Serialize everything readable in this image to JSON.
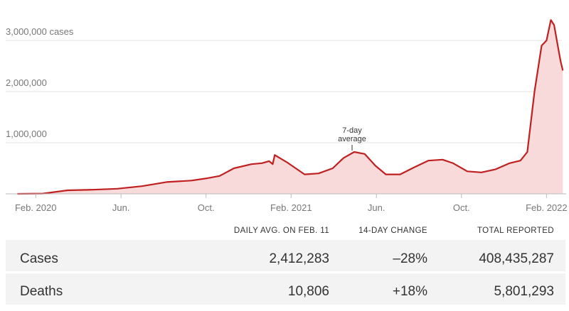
{
  "chart_data": {
    "type": "area",
    "x": [
      2020.011,
      2020.111,
      2020.208,
      2020.305,
      2020.402,
      2020.499,
      2020.595,
      2020.692,
      2020.748,
      2020.803,
      2020.859,
      2020.928,
      2020.969,
      2020.997,
      2021.011,
      2021.019,
      2021.066,
      2021.136,
      2021.191,
      2021.246,
      2021.288,
      2021.33,
      2021.371,
      2021.413,
      2021.454,
      2021.51,
      2021.565,
      2021.62,
      2021.676,
      2021.717,
      2021.773,
      2021.828,
      2021.884,
      2021.939,
      2021.981,
      2022.008,
      2022.036,
      2022.064,
      2022.083,
      2022.1,
      2022.113,
      2022.127,
      2022.138,
      2022.147
    ],
    "values": [
      0,
      5000,
      70000,
      80000,
      100000,
      150000,
      230000,
      260000,
      300000,
      350000,
      500000,
      580000,
      600000,
      640000,
      580000,
      760000,
      620000,
      380000,
      400000,
      500000,
      700000,
      820000,
      780000,
      550000,
      380000,
      380000,
      520000,
      650000,
      670000,
      600000,
      440000,
      420000,
      480000,
      600000,
      650000,
      820000,
      2000000,
      2900000,
      3000000,
      3400000,
      3300000,
      2900000,
      2600000,
      2412283
    ],
    "color": "#c0201f",
    "fill": "#f9dada",
    "xlim": [
      2020.01,
      2022.16
    ],
    "xticks": [
      {
        "value": 2020.083,
        "label": "Feb. 2020"
      },
      {
        "value": 2020.417,
        "label": "Jun."
      },
      {
        "value": 2020.75,
        "label": "Oct."
      },
      {
        "value": 2021.083,
        "label": "Feb. 2021"
      },
      {
        "value": 2021.417,
        "label": "Jun."
      },
      {
        "value": 2021.75,
        "label": "Oct."
      },
      {
        "value": 2022.083,
        "label": "Feb. 2022"
      }
    ],
    "ylim": [
      0,
      3500000
    ],
    "yticks": [
      {
        "value": 1000000,
        "label": "1,000,000"
      },
      {
        "value": 2000000,
        "label": "2,000,000"
      },
      {
        "value": 3000000,
        "label": "3,000,000 cases"
      }
    ],
    "grid": true,
    "annotation": [
      "7-day",
      "average"
    ]
  },
  "table": {
    "columns": [
      "DAILY AVG. ON FEB. 11",
      "14-DAY CHANGE",
      "TOTAL REPORTED"
    ],
    "rows": [
      [
        "Cases",
        "2,412,283",
        "–28%",
        "408,435,287"
      ],
      [
        "Deaths",
        "10,806",
        "+18%",
        "5,801,293"
      ]
    ]
  }
}
